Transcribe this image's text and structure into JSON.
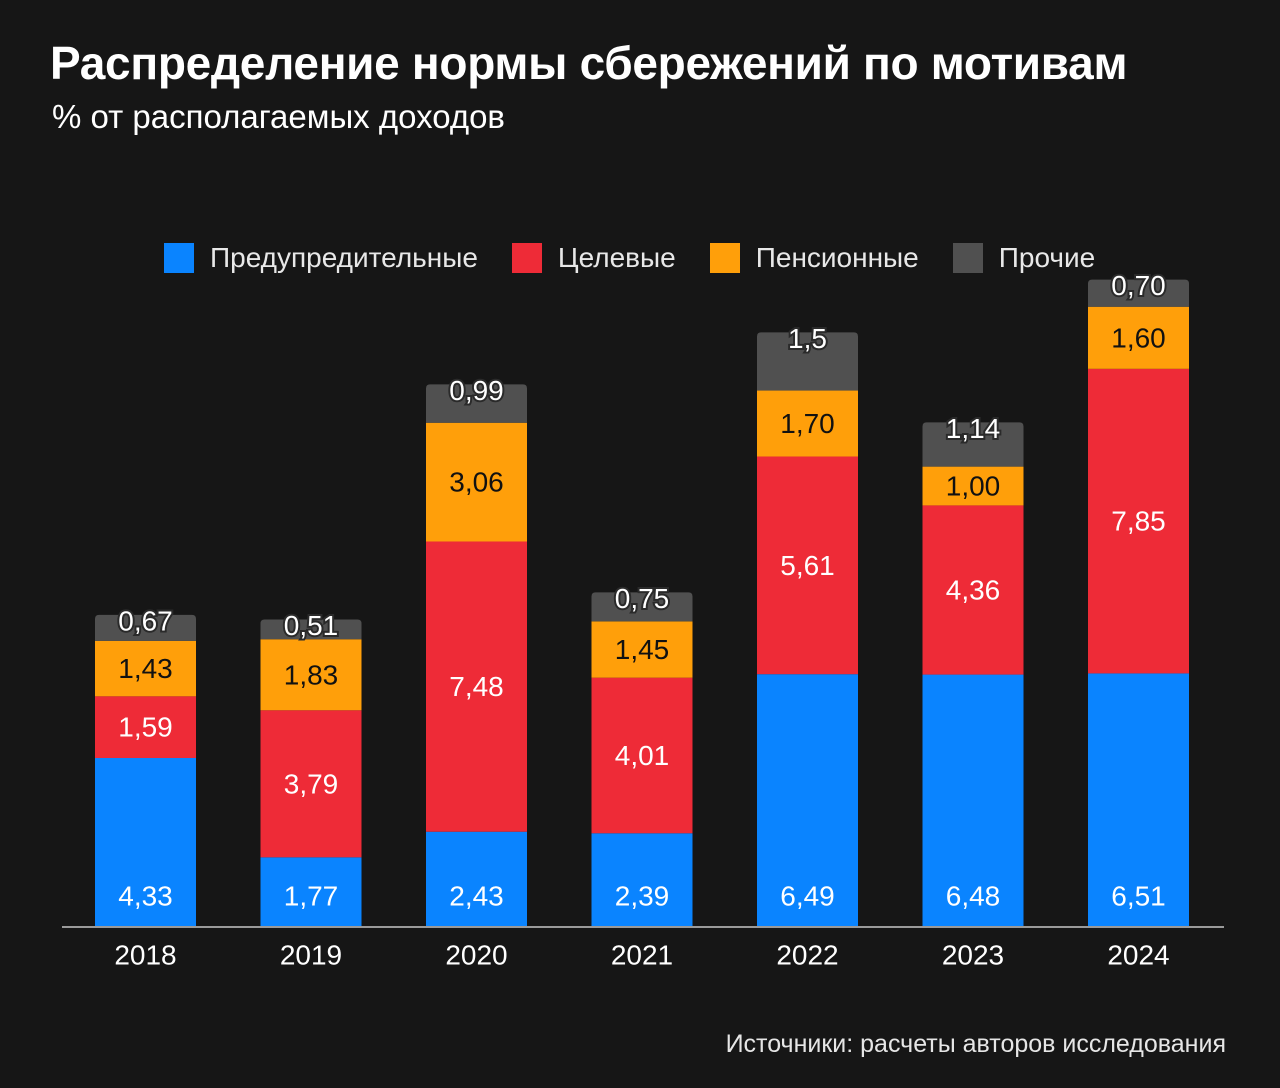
{
  "title": "Распределение нормы сбережений по мотивам",
  "subtitle": "% от располагаемых доходов",
  "source": "Источники: расчеты авторов исследования",
  "colors": {
    "background": "#161616",
    "precautionary": "#0A84FF",
    "target": "#EE2B37",
    "pension": "#FF9F0A",
    "other": "#505050",
    "axis": "#9a9a9a"
  },
  "legend": [
    {
      "label": "Предупредительные",
      "color": "#0A84FF"
    },
    {
      "label": "Целевые",
      "color": "#EE2B37"
    },
    {
      "label": "Пенсионные",
      "color": "#FF9F0A"
    },
    {
      "label": "Прочие",
      "color": "#505050"
    }
  ],
  "chart_data": {
    "type": "bar",
    "stacked": true,
    "categories": [
      "2018",
      "2019",
      "2020",
      "2021",
      "2022",
      "2023",
      "2024"
    ],
    "series": [
      {
        "name": "Предупредительные",
        "color": "#0A84FF",
        "values": [
          4.33,
          1.77,
          2.43,
          2.39,
          6.49,
          6.48,
          6.51
        ],
        "labels": [
          "4,33",
          "1,77",
          "2,43",
          "2,39",
          "6,49",
          "6,48",
          "6,51"
        ]
      },
      {
        "name": "Целевые",
        "color": "#EE2B37",
        "values": [
          1.59,
          3.79,
          7.48,
          4.01,
          5.61,
          4.36,
          7.85
        ],
        "labels": [
          "1,59",
          "3,79",
          "7,48",
          "4,01",
          "5,61",
          "4,36",
          "7,85"
        ]
      },
      {
        "name": "Пенсионные",
        "color": "#FF9F0A",
        "values": [
          1.43,
          1.83,
          3.06,
          1.45,
          1.7,
          1.0,
          1.6
        ],
        "labels": [
          "1,43",
          "1,83",
          "3,06",
          "1,45",
          "1,70",
          "1,00",
          "1,60"
        ]
      },
      {
        "name": "Прочие",
        "color": "#505050",
        "values": [
          0.67,
          0.51,
          0.99,
          0.75,
          1.5,
          1.14,
          0.7
        ],
        "labels": [
          "0,67",
          "0,51",
          "0,99",
          "0,75",
          "1,5",
          "1,14",
          "0,70"
        ]
      }
    ],
    "grid": false,
    "legend_position": "top"
  }
}
